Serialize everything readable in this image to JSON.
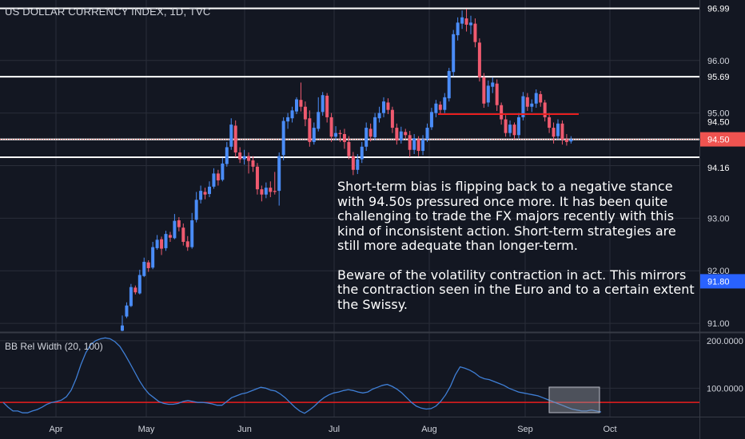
{
  "chart_data": {
    "type": "candlestick",
    "title": "US DOLLAR CURRENCY INDEX, 1D, TVC",
    "price_axis": {
      "ylim": [
        90.85,
        97.15
      ],
      "ticks": [
        91.0,
        92.0,
        93.0,
        95.0,
        96.0
      ],
      "tick_labels": [
        "91.00",
        "92.00",
        "93.00",
        "95.00",
        "96.00"
      ]
    },
    "time_axis": {
      "labels": [
        "Apr",
        "May",
        "Jun",
        "Jul",
        "Aug",
        "Sep",
        "Oct"
      ]
    },
    "horizontal_levels": [
      {
        "value": 96.99,
        "label": "96.99",
        "color": "#ffffff"
      },
      {
        "value": 95.69,
        "label": "95.69",
        "color": "#ffffff"
      },
      {
        "value": 94.16,
        "label": "94.16",
        "color": "#ffffff"
      },
      {
        "value": 94.5,
        "label": "94.50",
        "color": "#ffffff"
      }
    ],
    "price_badges": [
      {
        "value": 94.5,
        "label": "94.50",
        "color": "#ef5350"
      },
      {
        "value": 91.8,
        "label": "91.80",
        "color": "#2962ff"
      }
    ],
    "resistance_segment": {
      "value": 94.98,
      "color": "#e91e1e"
    },
    "last_price": 94.5,
    "candles": [
      [
        90.86,
        90.96,
        90.85,
        91.15
      ],
      [
        91.13,
        91.34,
        91.1,
        91.4
      ],
      [
        91.33,
        91.69,
        91.31,
        91.75
      ],
      [
        91.68,
        91.59,
        91.55,
        91.72
      ],
      [
        91.57,
        91.92,
        91.55,
        92.02
      ],
      [
        91.9,
        92.17,
        91.88,
        92.25
      ],
      [
        92.16,
        92.05,
        91.98,
        92.2
      ],
      [
        92.06,
        92.45,
        92.03,
        92.55
      ],
      [
        92.43,
        92.59,
        92.4,
        92.68
      ],
      [
        92.6,
        92.42,
        92.3,
        92.65
      ],
      [
        92.43,
        92.7,
        92.38,
        92.76
      ],
      [
        92.68,
        92.63,
        92.55,
        92.74
      ],
      [
        92.62,
        92.95,
        92.6,
        93.08
      ],
      [
        92.96,
        92.83,
        92.75,
        93.02
      ],
      [
        92.82,
        92.55,
        92.48,
        92.9
      ],
      [
        92.56,
        92.45,
        92.38,
        92.66
      ],
      [
        92.45,
        92.96,
        92.42,
        93.1
      ],
      [
        92.97,
        93.35,
        92.92,
        93.5
      ],
      [
        93.35,
        93.52,
        93.28,
        93.62
      ],
      [
        93.5,
        93.45,
        93.36,
        93.58
      ],
      [
        93.46,
        93.6,
        93.4,
        93.7
      ],
      [
        93.6,
        93.85,
        93.56,
        93.95
      ],
      [
        93.85,
        93.72,
        93.62,
        93.92
      ],
      [
        93.73,
        94.04,
        93.7,
        94.15
      ],
      [
        94.03,
        94.35,
        93.98,
        94.45
      ],
      [
        94.36,
        94.78,
        94.3,
        94.9
      ],
      [
        94.76,
        94.25,
        94.16,
        94.86
      ],
      [
        94.25,
        94.12,
        94.05,
        94.35
      ],
      [
        94.12,
        94.18,
        94.02,
        94.3
      ],
      [
        94.18,
        94.09,
        93.85,
        94.25
      ],
      [
        94.1,
        93.98,
        93.88,
        94.18
      ],
      [
        93.98,
        93.55,
        93.45,
        94.05
      ],
      [
        93.55,
        93.45,
        93.32,
        93.62
      ],
      [
        93.45,
        93.58,
        93.38,
        93.68
      ],
      [
        93.58,
        93.5,
        93.4,
        93.7
      ],
      [
        93.52,
        93.5,
        93.45,
        93.88
      ],
      [
        93.52,
        94.18,
        93.24,
        94.25
      ],
      [
        94.2,
        94.85,
        94.1,
        94.92
      ],
      [
        94.84,
        94.92,
        94.7,
        95.0
      ],
      [
        94.9,
        95.05,
        94.82,
        95.12
      ],
      [
        95.03,
        95.26,
        94.98,
        95.3
      ],
      [
        95.25,
        95.12,
        95.03,
        95.58
      ],
      [
        95.12,
        94.88,
        94.75,
        95.22
      ],
      [
        94.9,
        94.45,
        94.36,
        95.05
      ],
      [
        94.45,
        94.72,
        94.4,
        94.82
      ],
      [
        94.7,
        95.02,
        94.65,
        95.3
      ],
      [
        95.02,
        95.34,
        94.95,
        95.4
      ],
      [
        95.33,
        94.92,
        94.82,
        95.38
      ],
      [
        94.92,
        94.55,
        94.45,
        95.0
      ],
      [
        94.55,
        94.62,
        94.48,
        94.75
      ],
      [
        94.62,
        94.6,
        94.45,
        94.68
      ],
      [
        94.6,
        94.45,
        94.32,
        94.7
      ],
      [
        94.45,
        94.18,
        94.12,
        94.56
      ],
      [
        94.18,
        93.92,
        93.82,
        94.26
      ],
      [
        93.92,
        94.12,
        93.84,
        94.22
      ],
      [
        94.12,
        94.36,
        94.05,
        94.45
      ],
      [
        94.36,
        94.72,
        94.28,
        94.82
      ],
      [
        94.7,
        94.55,
        94.46,
        94.8
      ],
      [
        94.54,
        94.92,
        94.48,
        95.0
      ],
      [
        94.9,
        95.0,
        94.82,
        95.12
      ],
      [
        95.0,
        95.22,
        94.92,
        95.3
      ],
      [
        95.2,
        95.06,
        94.98,
        95.28
      ],
      [
        95.06,
        94.72,
        94.62,
        95.12
      ],
      [
        94.72,
        94.48,
        94.4,
        94.8
      ],
      [
        94.48,
        94.65,
        94.42,
        94.74
      ],
      [
        94.64,
        94.58,
        94.52,
        94.7
      ],
      [
        94.58,
        94.3,
        94.16,
        94.66
      ],
      [
        94.3,
        94.52,
        94.22,
        94.6
      ],
      [
        94.5,
        94.28,
        94.18,
        94.56
      ],
      [
        94.28,
        94.5,
        94.2,
        94.58
      ],
      [
        94.5,
        94.72,
        94.45,
        94.8
      ],
      [
        94.73,
        95.02,
        94.68,
        95.1
      ],
      [
        95.0,
        95.18,
        94.92,
        95.25
      ],
      [
        95.16,
        95.06,
        94.98,
        95.22
      ],
      [
        95.06,
        95.3,
        95.0,
        95.38
      ],
      [
        95.28,
        95.8,
        95.22,
        95.86
      ],
      [
        95.78,
        96.5,
        95.7,
        96.58
      ],
      [
        96.48,
        96.72,
        96.38,
        96.82
      ],
      [
        96.7,
        96.82,
        96.6,
        96.95
      ],
      [
        96.8,
        96.68,
        96.55,
        96.98
      ],
      [
        96.67,
        96.72,
        96.5,
        96.85
      ],
      [
        96.7,
        96.35,
        96.25,
        96.8
      ],
      [
        96.34,
        95.68,
        95.6,
        96.42
      ],
      [
        95.68,
        95.18,
        95.1,
        95.76
      ],
      [
        95.2,
        95.52,
        95.12,
        95.62
      ],
      [
        95.5,
        95.58,
        95.38,
        95.68
      ],
      [
        95.56,
        95.15,
        95.04,
        95.64
      ],
      [
        95.15,
        94.88,
        94.78,
        95.2
      ],
      [
        94.88,
        94.62,
        94.55,
        94.96
      ],
      [
        94.62,
        94.78,
        94.55,
        94.86
      ],
      [
        94.78,
        94.58,
        94.5,
        94.82
      ],
      [
        94.58,
        94.92,
        94.52,
        95.0
      ],
      [
        94.92,
        95.32,
        94.86,
        95.4
      ],
      [
        95.3,
        95.12,
        95.04,
        95.38
      ],
      [
        95.12,
        95.18,
        95.02,
        95.26
      ],
      [
        95.18,
        95.38,
        95.1,
        95.45
      ],
      [
        95.36,
        95.2,
        95.12,
        95.42
      ],
      [
        95.2,
        94.92,
        94.84,
        95.25
      ],
      [
        94.92,
        94.72,
        94.62,
        95.0
      ],
      [
        94.72,
        94.55,
        94.42,
        94.82
      ],
      [
        94.56,
        94.8,
        94.5,
        94.88
      ],
      [
        94.8,
        94.5,
        94.4,
        94.86
      ],
      [
        94.5,
        94.45,
        94.38,
        94.6
      ],
      [
        94.46,
        94.5,
        94.42,
        94.56
      ]
    ],
    "indicator": {
      "name": "BB Rel Width (20, 100)",
      "ylim": [
        40,
        215
      ],
      "ticks": [
        100,
        200
      ],
      "tick_labels": [
        "100.0000",
        "200.0000"
      ],
      "reference_level": 70,
      "values": [
        70,
        60,
        52,
        52,
        48,
        48,
        52,
        55,
        60,
        66,
        70,
        72,
        75,
        82,
        96,
        120,
        150,
        175,
        192,
        200,
        204,
        206,
        204,
        198,
        188,
        172,
        154,
        135,
        116,
        100,
        88,
        80,
        72,
        68,
        66,
        66,
        68,
        72,
        74,
        72,
        70,
        70,
        69,
        67,
        64,
        64,
        72,
        80,
        84,
        88,
        90,
        94,
        98,
        102,
        100,
        96,
        94,
        88,
        80,
        70,
        60,
        52,
        47,
        54,
        62,
        72,
        80,
        86,
        90,
        92,
        95,
        97,
        95,
        92,
        90,
        92,
        98,
        102,
        106,
        108,
        104,
        98,
        90,
        80,
        70,
        62,
        58,
        56,
        57,
        62,
        72,
        86,
        104,
        128,
        145,
        142,
        138,
        132,
        124,
        120,
        118,
        114,
        110,
        106,
        100,
        96,
        92,
        90,
        88,
        86,
        84,
        80,
        76,
        72,
        68,
        64,
        60,
        56,
        54,
        52,
        52,
        54,
        52,
        50
      ]
    },
    "highlight_box": {
      "color": "#9598a1"
    }
  },
  "annotation": {
    "paragraph1": "Short-term bias is flipping back to a negative stance with 94.50s pressured once more. It has been quite challenging to trade the FX majors recently with this kind of inconsistent action. Short-term strategies are still more adequate than longer-term.",
    "paragraph2": "Beware of the volatility contraction in act. This mirrors the contraction seen in the Euro and to a certain extent the Swissy."
  },
  "colors": {
    "background": "#131722",
    "up": "#4a8cf7",
    "down": "#ef5a6f",
    "grid": "#2a2e39",
    "axis_text": "#d1d4dc",
    "indicator_line": "#3f7fd6"
  }
}
